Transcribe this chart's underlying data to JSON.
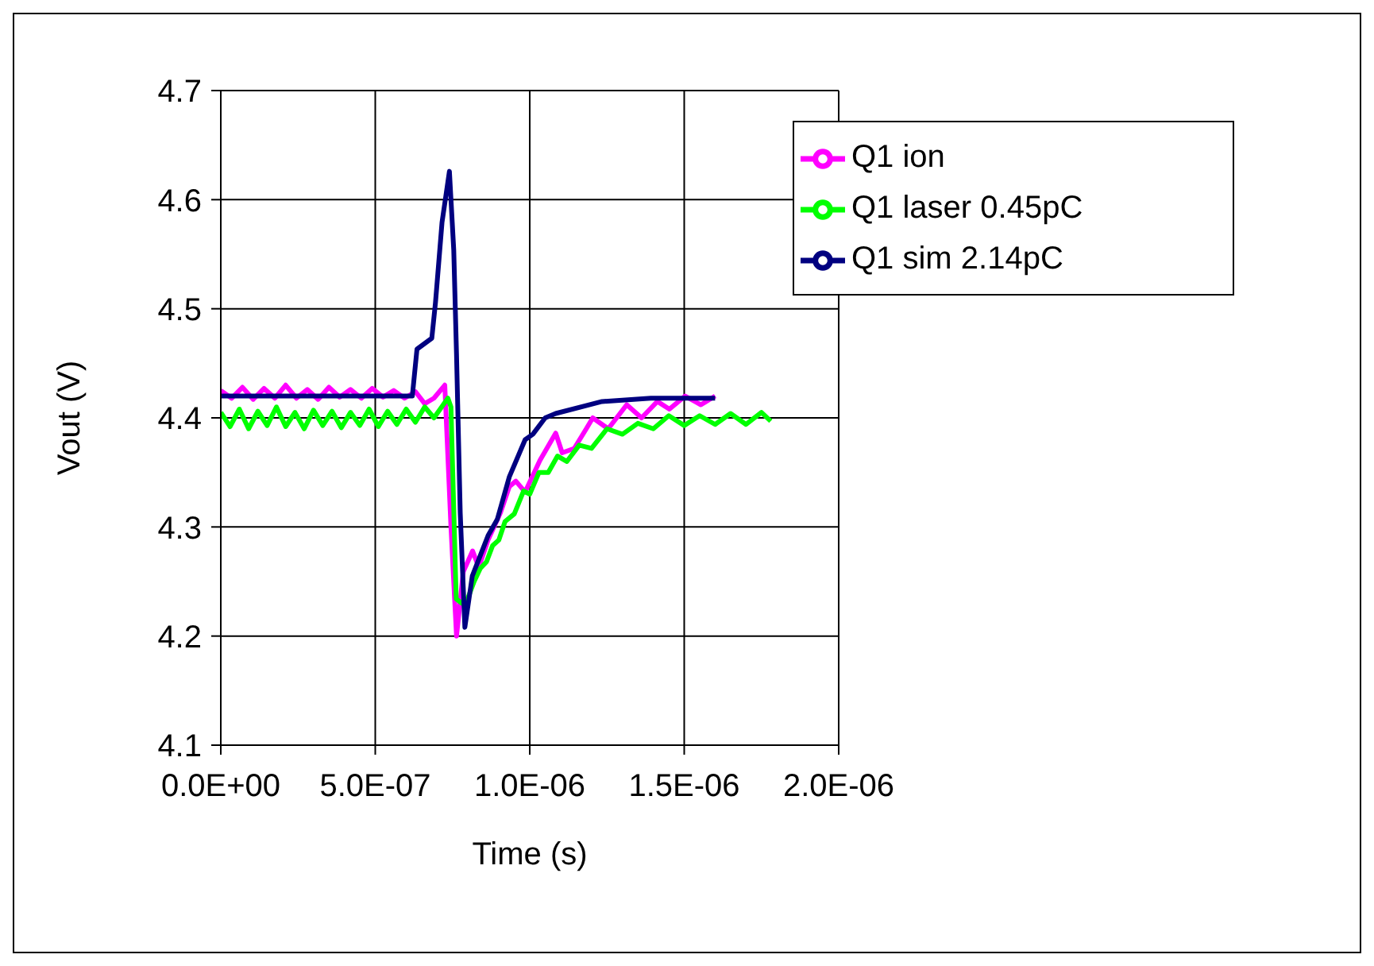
{
  "chart_data": {
    "type": "line",
    "xlabel": "Time (s)",
    "ylabel": "Vout (V)",
    "xlim": [
      0,
      2e-06
    ],
    "xticks": [
      {
        "value": 0,
        "label": "0.0E+00"
      },
      {
        "value": 5e-07,
        "label": "5.0E-07"
      },
      {
        "value": 1e-06,
        "label": "1.0E-06"
      },
      {
        "value": 1.5e-06,
        "label": "1.5E-06"
      },
      {
        "value": 2e-06,
        "label": "2.0E-06"
      }
    ],
    "ylim": [
      4.1,
      4.7
    ],
    "yticks": [
      4.1,
      4.2,
      4.3,
      4.4,
      4.5,
      4.6,
      4.7
    ],
    "grid": true,
    "legend": "top right",
    "series": [
      {
        "name": "Q1 ion",
        "color": "#ff00ff",
        "x": [
          0,
          3.5e-08,
          7e-08,
          1.05e-07,
          1.4e-07,
          1.75e-07,
          2.1e-07,
          2.45e-07,
          2.8e-07,
          3.15e-07,
          3.5e-07,
          3.85e-07,
          4.2e-07,
          4.55e-07,
          4.9e-07,
          5.25e-07,
          5.6e-07,
          5.95e-07,
          6.3e-07,
          6.6e-07,
          6.9e-07,
          7.25e-07,
          7.45e-07,
          7.63e-07,
          7.85e-07,
          8.15e-07,
          8.35e-07,
          8.65e-07,
          9.05e-07,
          9.34e-07,
          9.55e-07,
          9.85e-07,
          1.033e-06,
          1.084e-06,
          1.105e-06,
          1.144e-06,
          1.183e-06,
          1.204e-06,
          1.254e-06,
          1.314e-06,
          1.362e-06,
          1.413e-06,
          1.452e-06,
          1.503e-06,
          1.554e-06,
          1.6e-06
        ],
        "values": [
          4.425,
          4.418,
          4.428,
          4.417,
          4.427,
          4.418,
          4.43,
          4.418,
          4.426,
          4.417,
          4.428,
          4.419,
          4.426,
          4.418,
          4.427,
          4.419,
          4.425,
          4.418,
          4.424,
          4.413,
          4.418,
          4.43,
          4.3,
          4.2,
          4.259,
          4.278,
          4.263,
          4.288,
          4.313,
          4.337,
          4.342,
          4.332,
          4.361,
          4.386,
          4.368,
          4.372,
          4.39,
          4.4,
          4.39,
          4.412,
          4.4,
          4.415,
          4.408,
          4.42,
          4.412,
          4.42
        ]
      },
      {
        "name": "Q1 laser 0.45pC",
        "color": "#00ff00",
        "x": [
          0,
          3e-08,
          6e-08,
          9e-08,
          1.2e-07,
          1.5e-07,
          1.8e-07,
          2.1e-07,
          2.4e-07,
          2.7e-07,
          3e-07,
          3.3e-07,
          3.6e-07,
          3.9e-07,
          4.2e-07,
          4.5e-07,
          4.8e-07,
          5.1e-07,
          5.4e-07,
          5.7e-07,
          6e-07,
          6.3e-07,
          6.6e-07,
          6.9e-07,
          7.2e-07,
          7.35e-07,
          7.45e-07,
          7.62e-07,
          7.8e-07,
          8e-07,
          8.2e-07,
          8.4e-07,
          8.6e-07,
          8.8e-07,
          9e-07,
          9.2e-07,
          9.5e-07,
          9.8e-07,
          1e-06,
          1.03e-06,
          1.06e-06,
          1.09e-06,
          1.12e-06,
          1.16e-06,
          1.2e-06,
          1.25e-06,
          1.3e-06,
          1.35e-06,
          1.4e-06,
          1.45e-06,
          1.5e-06,
          1.55e-06,
          1.6e-06,
          1.65e-06,
          1.7e-06,
          1.75e-06,
          1.78e-06
        ],
        "values": [
          4.405,
          4.392,
          4.408,
          4.39,
          4.406,
          4.393,
          4.41,
          4.392,
          4.405,
          4.39,
          4.407,
          4.393,
          4.406,
          4.391,
          4.405,
          4.393,
          4.408,
          4.392,
          4.406,
          4.394,
          4.408,
          4.396,
          4.41,
          4.4,
          4.412,
          4.418,
          4.41,
          4.234,
          4.23,
          4.235,
          4.25,
          4.262,
          4.268,
          4.283,
          4.288,
          4.305,
          4.312,
          4.333,
          4.33,
          4.35,
          4.35,
          4.365,
          4.36,
          4.375,
          4.372,
          4.39,
          4.385,
          4.395,
          4.39,
          4.402,
          4.393,
          4.402,
          4.394,
          4.404,
          4.394,
          4.405,
          4.397
        ]
      },
      {
        "name": "Q1 sim 2.14pC",
        "color": "#000080",
        "x": [
          0,
          6.2e-07,
          6.35e-07,
          6.83e-07,
          6.95e-07,
          7.16e-07,
          7.4e-07,
          7.54e-07,
          7.63e-07,
          7.75e-07,
          7.9e-07,
          8.14e-07,
          8.65e-07,
          8.95e-07,
          9.34e-07,
          9.85e-07,
          1.01e-06,
          1.05e-06,
          1.084e-06,
          1.234e-06,
          1.392e-06,
          1.6e-06
        ],
        "values": [
          4.42,
          4.42,
          4.463,
          4.473,
          4.506,
          4.579,
          4.626,
          4.554,
          4.458,
          4.313,
          4.208,
          4.255,
          4.292,
          4.307,
          4.346,
          4.38,
          4.385,
          4.4,
          4.404,
          4.415,
          4.418,
          4.418
        ]
      }
    ]
  }
}
